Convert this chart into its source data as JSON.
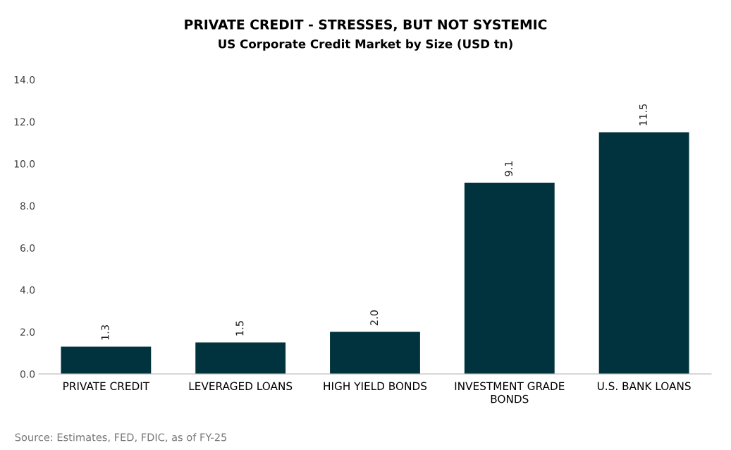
{
  "chart_data": {
    "type": "bar",
    "title": "PRIVATE CREDIT - STRESSES, BUT NOT SYSTEMIC",
    "subtitle": "US Corporate Credit Market by Size (USD tn)",
    "categories": [
      "PRIVATE CREDIT",
      "LEVERAGED LOANS",
      "HIGH YIELD BONDS",
      "INVESTMENT GRADE\nBONDS",
      "U.S. BANK LOANS"
    ],
    "values": [
      1.3,
      1.5,
      2.0,
      9.1,
      11.5
    ],
    "value_labels": [
      "1.3",
      "1.5",
      "2.0",
      "9.1",
      "11.5"
    ],
    "color": "#00333d",
    "ylim": [
      0,
      14
    ],
    "yticks": [
      {
        "value": 0,
        "label": "0.0"
      },
      {
        "value": 2,
        "label": "2.0"
      },
      {
        "value": 4,
        "label": "4.0"
      },
      {
        "value": 6,
        "label": "6.0"
      },
      {
        "value": 8,
        "label": "8.0"
      },
      {
        "value": 10,
        "label": "10.0"
      },
      {
        "value": 12,
        "label": "12.0"
      },
      {
        "value": 14,
        "label": "14.0"
      }
    ],
    "grid": false,
    "legend": false,
    "annotations": [
      "Source: Estimates, FED, FDIC, as of FY-25"
    ]
  }
}
